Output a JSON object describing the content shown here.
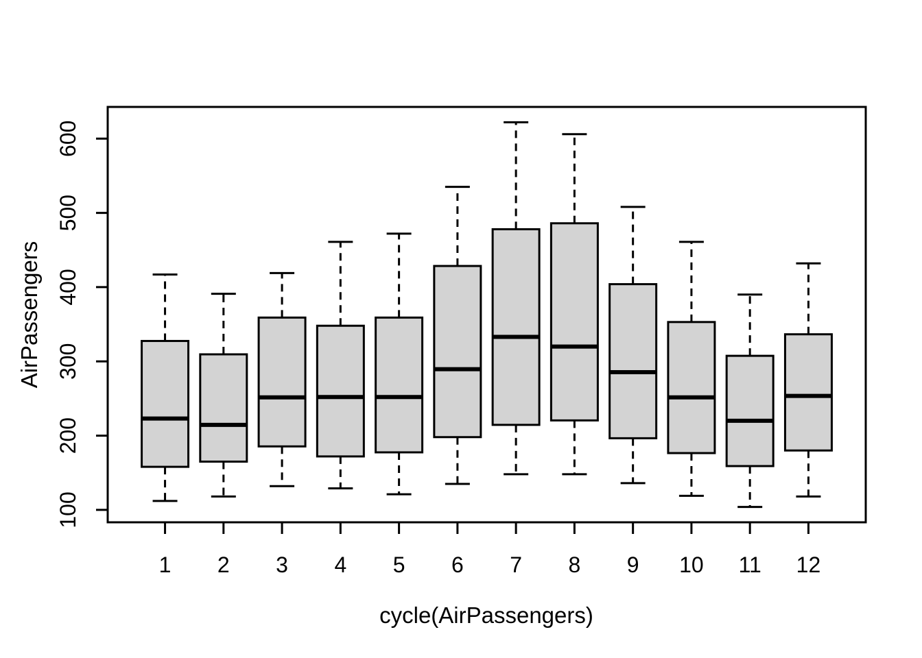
{
  "figure": {
    "background": "#ffffff",
    "foreground": "#000000"
  },
  "chart_data": {
    "type": "boxplot",
    "title": "",
    "xlabel": "cycle(AirPassengers)",
    "ylabel": "AirPassengers",
    "categories": [
      "1",
      "2",
      "3",
      "4",
      "5",
      "6",
      "7",
      "8",
      "9",
      "10",
      "11",
      "12"
    ],
    "x_ticks": [
      1,
      2,
      3,
      4,
      5,
      6,
      7,
      8,
      9,
      10,
      11,
      12
    ],
    "y_ticks": [
      100,
      200,
      300,
      400,
      500,
      600
    ],
    "ylim": [
      83.3,
      642.7
    ],
    "xlim": [
      0.02,
      12.98
    ],
    "grid": false,
    "legend": false,
    "box_fill": "#d3d3d3",
    "line_color": "#000000",
    "series": [
      {
        "category": "1",
        "whisker_low": 112,
        "q1": 158,
        "median": 223,
        "q3": 327.5,
        "whisker_high": 417,
        "outliers": []
      },
      {
        "category": "2",
        "whisker_low": 118,
        "q1": 165,
        "median": 214.5,
        "q3": 309.5,
        "whisker_high": 391,
        "outliers": []
      },
      {
        "category": "3",
        "whisker_low": 132,
        "q1": 185.5,
        "median": 251.5,
        "q3": 359,
        "whisker_high": 419,
        "outliers": []
      },
      {
        "category": "4",
        "whisker_low": 129,
        "q1": 172,
        "median": 252,
        "q3": 348,
        "whisker_high": 461,
        "outliers": []
      },
      {
        "category": "5",
        "whisker_low": 121,
        "q1": 177.5,
        "median": 252,
        "q3": 359,
        "whisker_high": 472,
        "outliers": []
      },
      {
        "category": "6",
        "whisker_low": 135,
        "q1": 198,
        "median": 289.5,
        "q3": 428.5,
        "whisker_high": 535,
        "outliers": []
      },
      {
        "category": "7",
        "whisker_low": 148,
        "q1": 214.5,
        "median": 333,
        "q3": 478,
        "whisker_high": 622,
        "outliers": []
      },
      {
        "category": "8",
        "whisker_low": 148,
        "q1": 220.5,
        "median": 320,
        "q3": 486,
        "whisker_high": 606,
        "outliers": []
      },
      {
        "category": "9",
        "whisker_low": 136,
        "q1": 196.5,
        "median": 285.5,
        "q3": 404,
        "whisker_high": 508,
        "outliers": []
      },
      {
        "category": "10",
        "whisker_low": 119,
        "q1": 176.5,
        "median": 251.5,
        "q3": 353,
        "whisker_high": 461,
        "outliers": []
      },
      {
        "category": "11",
        "whisker_low": 104,
        "q1": 159,
        "median": 220,
        "q3": 307.5,
        "whisker_high": 390,
        "outliers": []
      },
      {
        "category": "12",
        "whisker_low": 118,
        "q1": 180,
        "median": 253.5,
        "q3": 336.5,
        "whisker_high": 432,
        "outliers": []
      }
    ]
  }
}
